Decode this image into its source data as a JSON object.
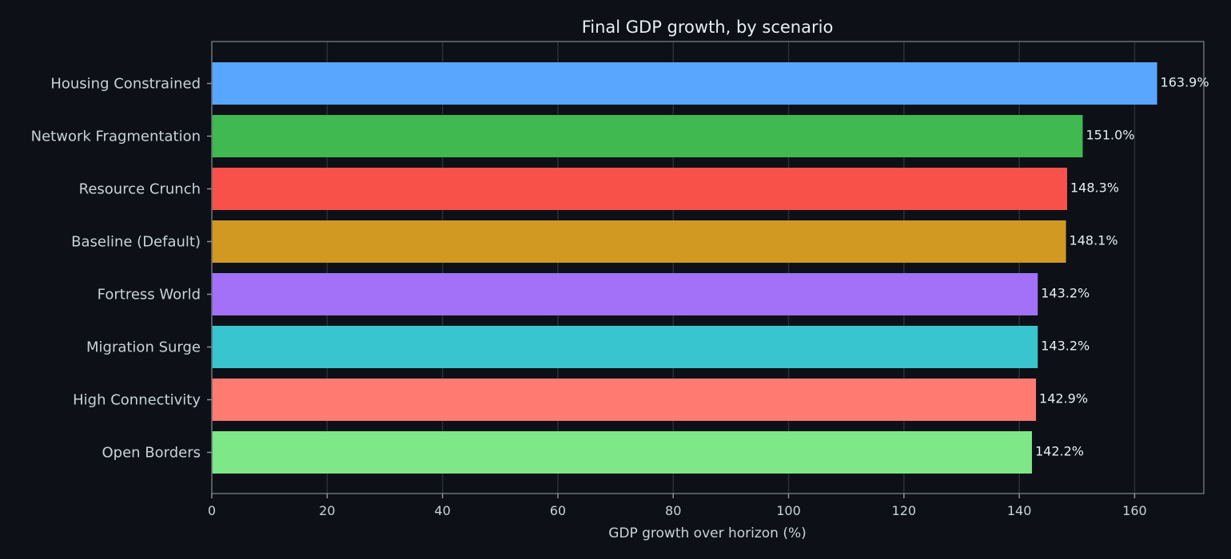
{
  "chart_data": {
    "type": "bar",
    "orientation": "horizontal",
    "title": "Final GDP growth, by scenario",
    "xlabel": "GDP growth over horizon (%)",
    "ylabel": "",
    "categories": [
      "Housing Constrained",
      "Network Fragmentation",
      "Resource Crunch",
      "Baseline (Default)",
      "Fortress World",
      "Migration Surge",
      "High Connectivity",
      "Open Borders"
    ],
    "values": [
      163.9,
      151.0,
      148.3,
      148.1,
      143.2,
      143.2,
      142.9,
      142.2
    ],
    "value_labels": [
      "163.9%",
      "151.0%",
      "148.3%",
      "148.1%",
      "143.2%",
      "143.2%",
      "142.9%",
      "142.2%"
    ],
    "colors": [
      "#58a6ff",
      "#3fb950",
      "#f85149",
      "#d29922",
      "#a371f7",
      "#39c5cf",
      "#ff7b72",
      "#7ee787"
    ],
    "xlim": [
      0,
      172
    ],
    "xticks": [
      0,
      20,
      40,
      60,
      80,
      100,
      120,
      140,
      160
    ],
    "xtick_labels": [
      "0",
      "20",
      "40",
      "60",
      "80",
      "100",
      "120",
      "140",
      "160"
    ],
    "grid": "vertical",
    "legend": "none"
  }
}
